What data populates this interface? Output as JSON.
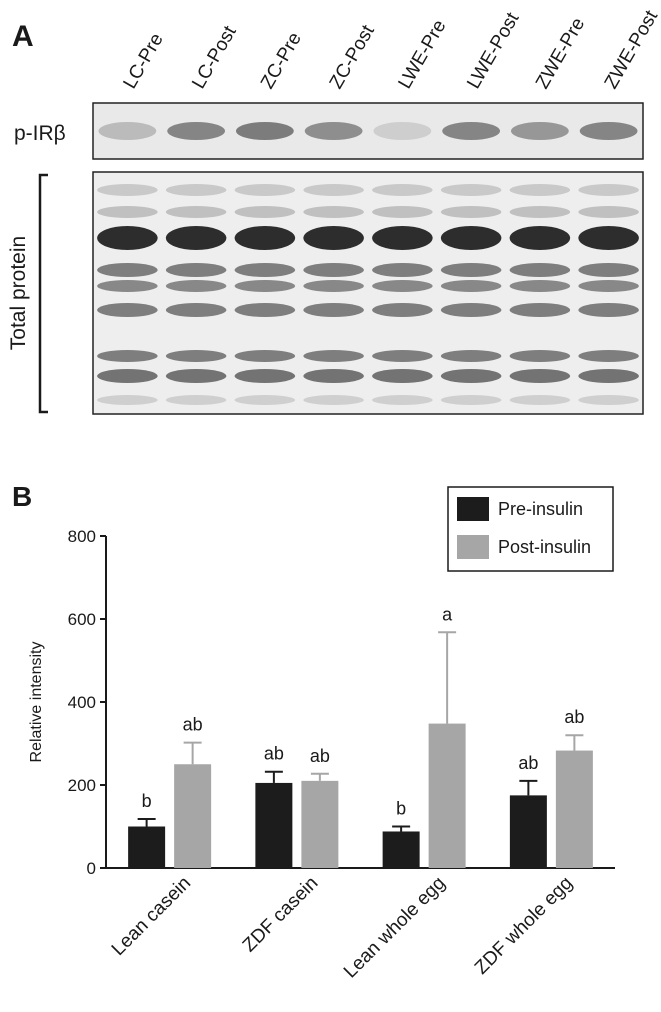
{
  "panel_a": {
    "label": "A",
    "lane_labels": [
      "LC-Pre",
      "LC-Post",
      "ZC-Pre",
      "ZC-Post",
      "LWE-Pre",
      "LWE-Post",
      "ZWE-Pre",
      "ZWE-Post"
    ],
    "row_label_pirb": "p-IRβ",
    "row_label_total": "Total protein"
  },
  "panel_b": {
    "label": "B"
  },
  "chart_data": {
    "type": "bar",
    "categories": [
      "Lean casein",
      "ZDF casein",
      "Lean whole egg",
      "ZDF whole egg"
    ],
    "series": [
      {
        "name": "Pre-insulin",
        "color": "#1c1c1c",
        "values": [
          100,
          205,
          88,
          175
        ],
        "errors": [
          18,
          27,
          12,
          35
        ],
        "letters": [
          "b",
          "ab",
          "b",
          "ab"
        ]
      },
      {
        "name": "Post-insulin",
        "color": "#a6a6a6",
        "values": [
          250,
          210,
          348,
          283
        ],
        "errors": [
          52,
          17,
          220,
          37
        ],
        "letters": [
          "ab",
          "ab",
          "a",
          "ab"
        ]
      }
    ],
    "title": "",
    "xlabel": "",
    "ylabel": "Relative intensity",
    "ylim": [
      0,
      800
    ],
    "yticks": [
      0,
      200,
      400,
      600,
      800
    ],
    "legend_position": "top-right",
    "grid": false
  }
}
